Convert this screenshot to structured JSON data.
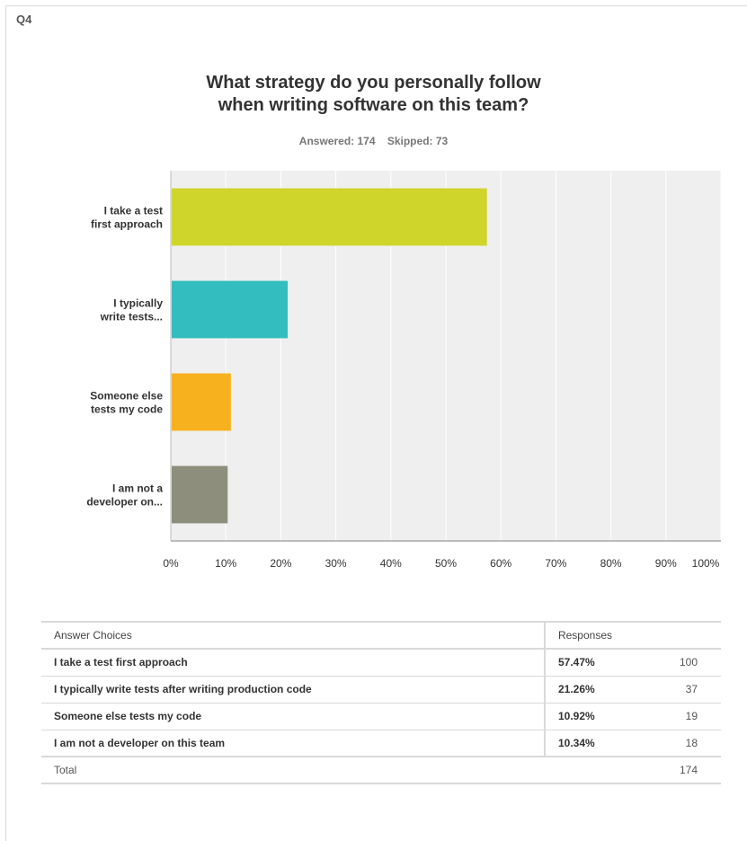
{
  "question_number": "Q4",
  "title_lines": [
    "What strategy do you personally follow",
    "when writing software on this team?"
  ],
  "answered_label": "Answered: 174",
  "skipped_label": "Skipped: 73",
  "colors": {
    "bar1": "#cfd52a",
    "bar2": "#34bdbf",
    "bar3": "#f7b11e",
    "bar4": "#8e8e7d",
    "grid": "#efefef",
    "plot_bg": "#efefef"
  },
  "chart_data": {
    "type": "bar",
    "orientation": "horizontal",
    "title": "What strategy do you personally follow when writing software on this team?",
    "categories": [
      [
        "I take a test",
        "first approach"
      ],
      [
        "I typically",
        "write tests..."
      ],
      [
        "Someone else",
        "tests my code"
      ],
      [
        "I am not a",
        "developer on..."
      ]
    ],
    "values": [
      57.47,
      21.26,
      10.92,
      10.34
    ],
    "xlim": [
      0,
      100
    ],
    "x_ticks": [
      "0%",
      "10%",
      "20%",
      "30%",
      "40%",
      "50%",
      "60%",
      "70%",
      "80%",
      "90%",
      "100%"
    ],
    "grid": true
  },
  "table": {
    "header": {
      "choices": "Answer Choices",
      "responses": "Responses"
    },
    "rows": [
      {
        "choice": "I take a test first approach",
        "percent": "57.47%",
        "count": "100"
      },
      {
        "choice": "I typically write tests after writing production code",
        "percent": "21.26%",
        "count": "37"
      },
      {
        "choice": "Someone else tests my code",
        "percent": "10.92%",
        "count": "19"
      },
      {
        "choice": "I am not a developer on this team",
        "percent": "10.34%",
        "count": "18"
      }
    ],
    "total_label": "Total",
    "total_count": "174"
  }
}
